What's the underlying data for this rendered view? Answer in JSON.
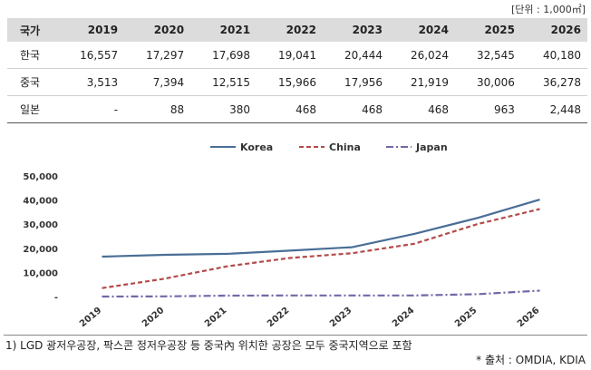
{
  "unit_note": "[단위 : 1,000㎡]",
  "table": {
    "header": [
      "국가",
      "2019",
      "2020",
      "2021",
      "2022",
      "2023",
      "2024",
      "2025",
      "2026"
    ],
    "rows": [
      [
        "한국",
        "16,557",
        "17,297",
        "17,698",
        "19,041",
        "20,444",
        "26,024",
        "32,545",
        "40,180"
      ],
      [
        "중국",
        "3,513",
        "7,394",
        "12,515",
        "15,966",
        "17,956",
        "21,919",
        "30,006",
        "36,278"
      ],
      [
        "일본",
        "-",
        "88",
        "380",
        "468",
        "468",
        "468",
        "963",
        "2,448"
      ]
    ]
  },
  "chart_data": {
    "type": "line",
    "categories": [
      "2019",
      "2020",
      "2021",
      "2022",
      "2023",
      "2024",
      "2025",
      "2026"
    ],
    "series": [
      {
        "name": "Korea",
        "values": [
          16557,
          17297,
          17698,
          19041,
          20444,
          26024,
          32545,
          40180
        ],
        "color": "#4a6e96",
        "dash": "solid"
      },
      {
        "name": "China",
        "values": [
          3513,
          7394,
          12515,
          15966,
          17956,
          21919,
          30006,
          36278
        ],
        "color": "#b54a4a",
        "dash": "dash"
      },
      {
        "name": "Japan",
        "values": [
          0,
          88,
          380,
          468,
          468,
          468,
          963,
          2448
        ],
        "color": "#7566a8",
        "dash": "dashdot"
      }
    ],
    "yticks": [
      "-",
      "10,000",
      "20,000",
      "30,000",
      "40,000",
      "50,000"
    ],
    "ylim": [
      0,
      50000
    ],
    "grid": false,
    "legend": "top-center"
  },
  "footnote": "1) LGD 광저우공장, 팍스콘 정저우공장 등 중국內 위치한 공장은 모두 중국지역으로 포함",
  "source": "* 출처 : OMDIA, KDIA"
}
